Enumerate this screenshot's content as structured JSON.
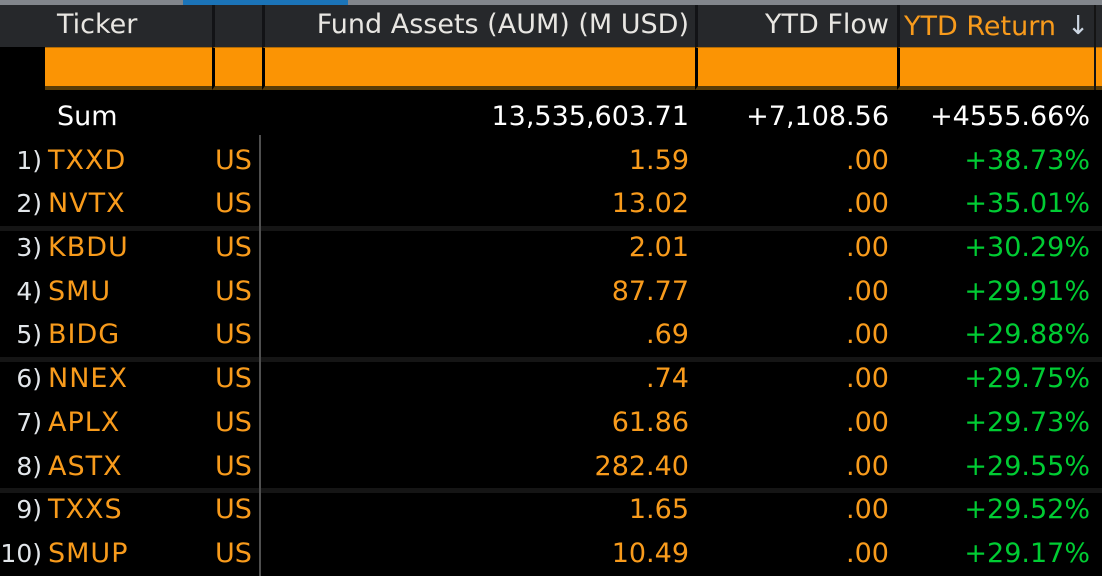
{
  "header": {
    "ticker_label": "Ticker",
    "aum_label": "Fund Assets (AUM) (M USD)",
    "flow_label": "YTD Flow",
    "return_label": "YTD Return",
    "sort_arrow": "↓"
  },
  "sum_row": {
    "label": "Sum",
    "aum": "13,535,603.71",
    "flow": "+7,108.56",
    "ret": "+4555.66%"
  },
  "rows": [
    {
      "num": "1)",
      "ticker": "TXXD",
      "exchange": "US",
      "aum": "1.59",
      "flow": ".00",
      "ret": "+38.73%"
    },
    {
      "num": "2)",
      "ticker": "NVTX",
      "exchange": "US",
      "aum": "13.02",
      "flow": ".00",
      "ret": "+35.01%"
    },
    {
      "num": "3)",
      "ticker": "KBDU",
      "exchange": "US",
      "aum": "2.01",
      "flow": ".00",
      "ret": "+30.29%"
    },
    {
      "num": "4)",
      "ticker": "SMU",
      "exchange": "US",
      "aum": "87.77",
      "flow": ".00",
      "ret": "+29.91%"
    },
    {
      "num": "5)",
      "ticker": "BIDG",
      "exchange": "US",
      "aum": ".69",
      "flow": ".00",
      "ret": "+29.88%"
    },
    {
      "num": "6)",
      "ticker": "NNEX",
      "exchange": "US",
      "aum": ".74",
      "flow": ".00",
      "ret": "+29.75%"
    },
    {
      "num": "7)",
      "ticker": "APLX",
      "exchange": "US",
      "aum": "61.86",
      "flow": ".00",
      "ret": "+29.73%"
    },
    {
      "num": "8)",
      "ticker": "ASTX",
      "exchange": "US",
      "aum": "282.40",
      "flow": ".00",
      "ret": "+29.55%"
    },
    {
      "num": "9)",
      "ticker": "TXXS",
      "exchange": "US",
      "aum": "1.65",
      "flow": ".00",
      "ret": "+29.52%"
    },
    {
      "num": "10)",
      "ticker": "SMUP",
      "exchange": "US",
      "aum": "10.49",
      "flow": ".00",
      "ret": "+29.17%"
    }
  ],
  "colors": {
    "amber_fill": "#fb9404",
    "orange_text": "#f89b1c",
    "green_text": "#00cc33",
    "white_text": "#ffffff",
    "header_bg": "#26282b",
    "scrollbar_track": "#82868c",
    "scrollbar_thumb": "#1b74b8"
  }
}
